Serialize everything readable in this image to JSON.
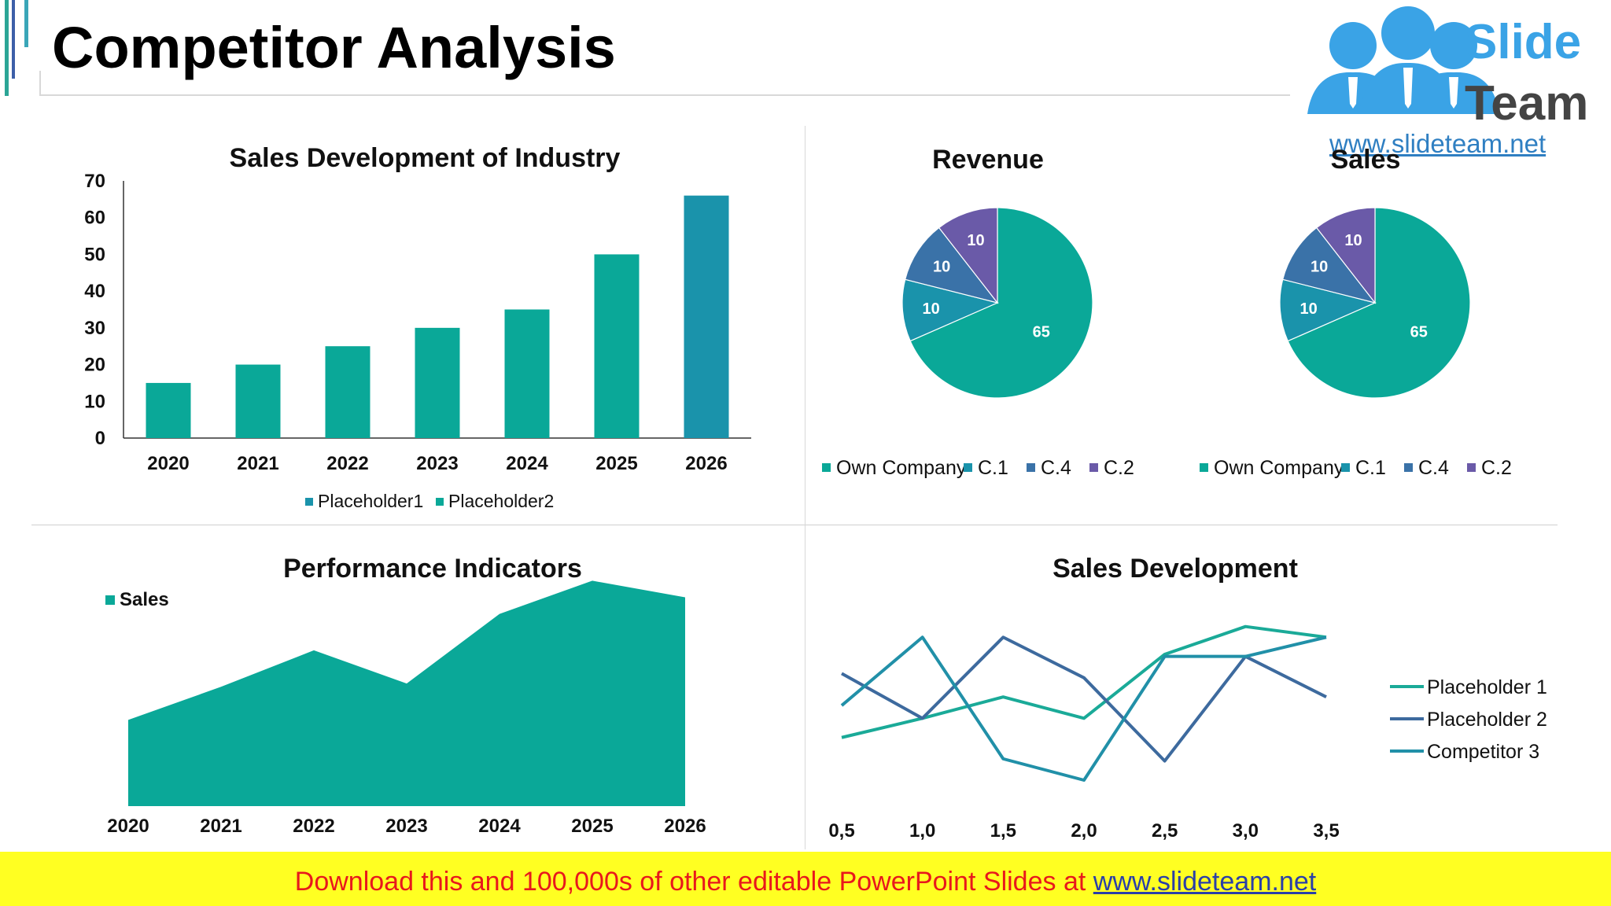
{
  "page": {
    "title": "Competitor Analysis",
    "logo": {
      "line1": "Slide",
      "line2": "Team",
      "url": "www.slideteam.net"
    },
    "banner": {
      "text": "Download this and 100,000s of other editable PowerPoint Slides at ",
      "link": "www.slideteam.net"
    }
  },
  "colors": {
    "teal": "#0aa898",
    "teal_dark": "#1a93ab",
    "blue_mid": "#3a72a8",
    "purple": "#6a5aa8",
    "line1": "#1aaa98",
    "line2": "#3d6a9e",
    "line3": "#2190a8"
  },
  "chart_data": [
    {
      "type": "bar",
      "title": "Sales Development of Industry",
      "categories": [
        "2020",
        "2021",
        "2022",
        "2023",
        "2024",
        "2025",
        "2026"
      ],
      "series": [
        {
          "name": "Placeholder1",
          "values": [
            0,
            0,
            0,
            0,
            0,
            0,
            66
          ]
        },
        {
          "name": "Placeholder2",
          "values": [
            15,
            20,
            25,
            30,
            35,
            50,
            0
          ]
        }
      ],
      "ylim": [
        0,
        70
      ],
      "yticks": [
        "0",
        "10",
        "20",
        "30",
        "40",
        "50",
        "60",
        "70"
      ],
      "legend_position": "bottom"
    },
    {
      "type": "pie",
      "title": "Revenue",
      "labels": [
        "Own Company",
        "C.1",
        "C.4",
        "C.2"
      ],
      "values": [
        65,
        10,
        10,
        10
      ],
      "data_labels": [
        "65",
        "10",
        "10",
        "10"
      ],
      "legend_position": "bottom"
    },
    {
      "type": "pie",
      "title": "Sales",
      "labels": [
        "Own Company",
        "C.1",
        "C.4",
        "C.2"
      ],
      "values": [
        65,
        10,
        10,
        10
      ],
      "data_labels": [
        "65",
        "10",
        "10",
        "10"
      ],
      "legend_position": "bottom"
    },
    {
      "type": "area",
      "title": "Performance Indicators",
      "categories": [
        "2020",
        "2021",
        "2022",
        "2023",
        "2024",
        "2025",
        "2026"
      ],
      "series": [
        {
          "name": "Sales",
          "values": [
            26,
            36,
            47,
            37,
            58,
            68,
            63
          ]
        }
      ],
      "ylim": [
        0,
        70
      ],
      "legend_position": "top-left"
    },
    {
      "type": "line",
      "title": "Sales Development",
      "x": [
        "0,5",
        "1,0",
        "1,5",
        "2,0",
        "2,5",
        "3,0",
        "3,5"
      ],
      "series": [
        {
          "name": "Placeholder 1",
          "values": [
            2.0,
            2.9,
            3.9,
            2.9,
            5.9,
            7.2,
            6.7
          ]
        },
        {
          "name": "Placeholder 2",
          "values": [
            5.0,
            2.9,
            6.7,
            4.8,
            0.9,
            5.8,
            3.9
          ]
        },
        {
          "name": "Competitor 3",
          "values": [
            3.5,
            6.7,
            1.0,
            0.0,
            5.8,
            5.8,
            6.7
          ]
        }
      ],
      "ylim": [
        0,
        8
      ],
      "legend_position": "right"
    }
  ]
}
